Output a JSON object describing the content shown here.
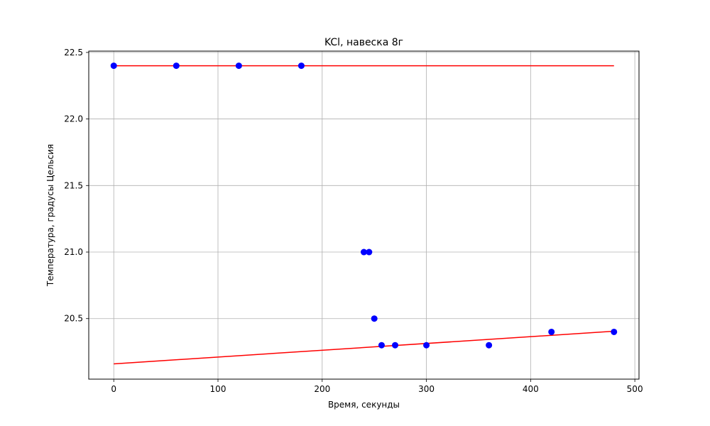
{
  "chart_data": {
    "type": "scatter",
    "title": "KCl, навеска 8г",
    "xlabel": "Время, секунды",
    "ylabel": "Температура, градусы Цельсия",
    "xlim": [
      -24,
      504
    ],
    "ylim": [
      20.045,
      22.51
    ],
    "xticks": [
      0,
      100,
      200,
      300,
      400,
      500
    ],
    "yticks": [
      20.5,
      21.0,
      21.5,
      22.0,
      22.5
    ],
    "xtick_labels": [
      "0",
      "100",
      "200",
      "300",
      "400",
      "500"
    ],
    "ytick_labels": [
      "20.5",
      "21.0",
      "21.5",
      "22.0",
      "22.5"
    ],
    "grid": true,
    "points": {
      "color": "#0000ff",
      "x": [
        0,
        60,
        120,
        180,
        240,
        245,
        250,
        257,
        270,
        300,
        360,
        420,
        480
      ],
      "y": [
        22.4,
        22.4,
        22.4,
        22.4,
        21.0,
        21.0,
        20.5,
        20.3,
        20.3,
        20.3,
        20.3,
        20.4,
        20.4
      ]
    },
    "lines": [
      {
        "color": "#ff0000",
        "x": [
          0,
          480
        ],
        "y": [
          22.4,
          22.4
        ]
      },
      {
        "color": "#ff0000",
        "x": [
          0,
          480
        ],
        "y": [
          20.16,
          20.405
        ]
      }
    ]
  }
}
